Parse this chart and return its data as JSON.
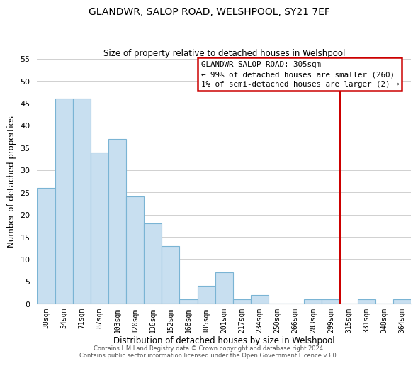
{
  "title": "GLANDWR, SALOP ROAD, WELSHPOOL, SY21 7EF",
  "subtitle": "Size of property relative to detached houses in Welshpool",
  "xlabel": "Distribution of detached houses by size in Welshpool",
  "ylabel": "Number of detached properties",
  "bar_color": "#c8dff0",
  "bar_edge_color": "#7ab4d4",
  "background_color": "#ffffff",
  "grid_color": "#d0d0d0",
  "bin_labels": [
    "38sqm",
    "54sqm",
    "71sqm",
    "87sqm",
    "103sqm",
    "120sqm",
    "136sqm",
    "152sqm",
    "168sqm",
    "185sqm",
    "201sqm",
    "217sqm",
    "234sqm",
    "250sqm",
    "266sqm",
    "283sqm",
    "299sqm",
    "315sqm",
    "331sqm",
    "348sqm",
    "364sqm"
  ],
  "bar_heights": [
    26,
    46,
    46,
    34,
    37,
    24,
    18,
    13,
    1,
    4,
    7,
    1,
    2,
    0,
    0,
    1,
    1,
    0,
    1,
    0,
    1
  ],
  "ylim": [
    0,
    55
  ],
  "yticks": [
    0,
    5,
    10,
    15,
    20,
    25,
    30,
    35,
    40,
    45,
    50,
    55
  ],
  "vline_color": "#cc0000",
  "annotation_title": "GLANDWR SALOP ROAD: 305sqm",
  "annotation_line1": "← 99% of detached houses are smaller (260)",
  "annotation_line2": "1% of semi-detached houses are larger (2) →",
  "footer_line1": "Contains HM Land Registry data © Crown copyright and database right 2024.",
  "footer_line2": "Contains public sector information licensed under the Open Government Licence v3.0."
}
